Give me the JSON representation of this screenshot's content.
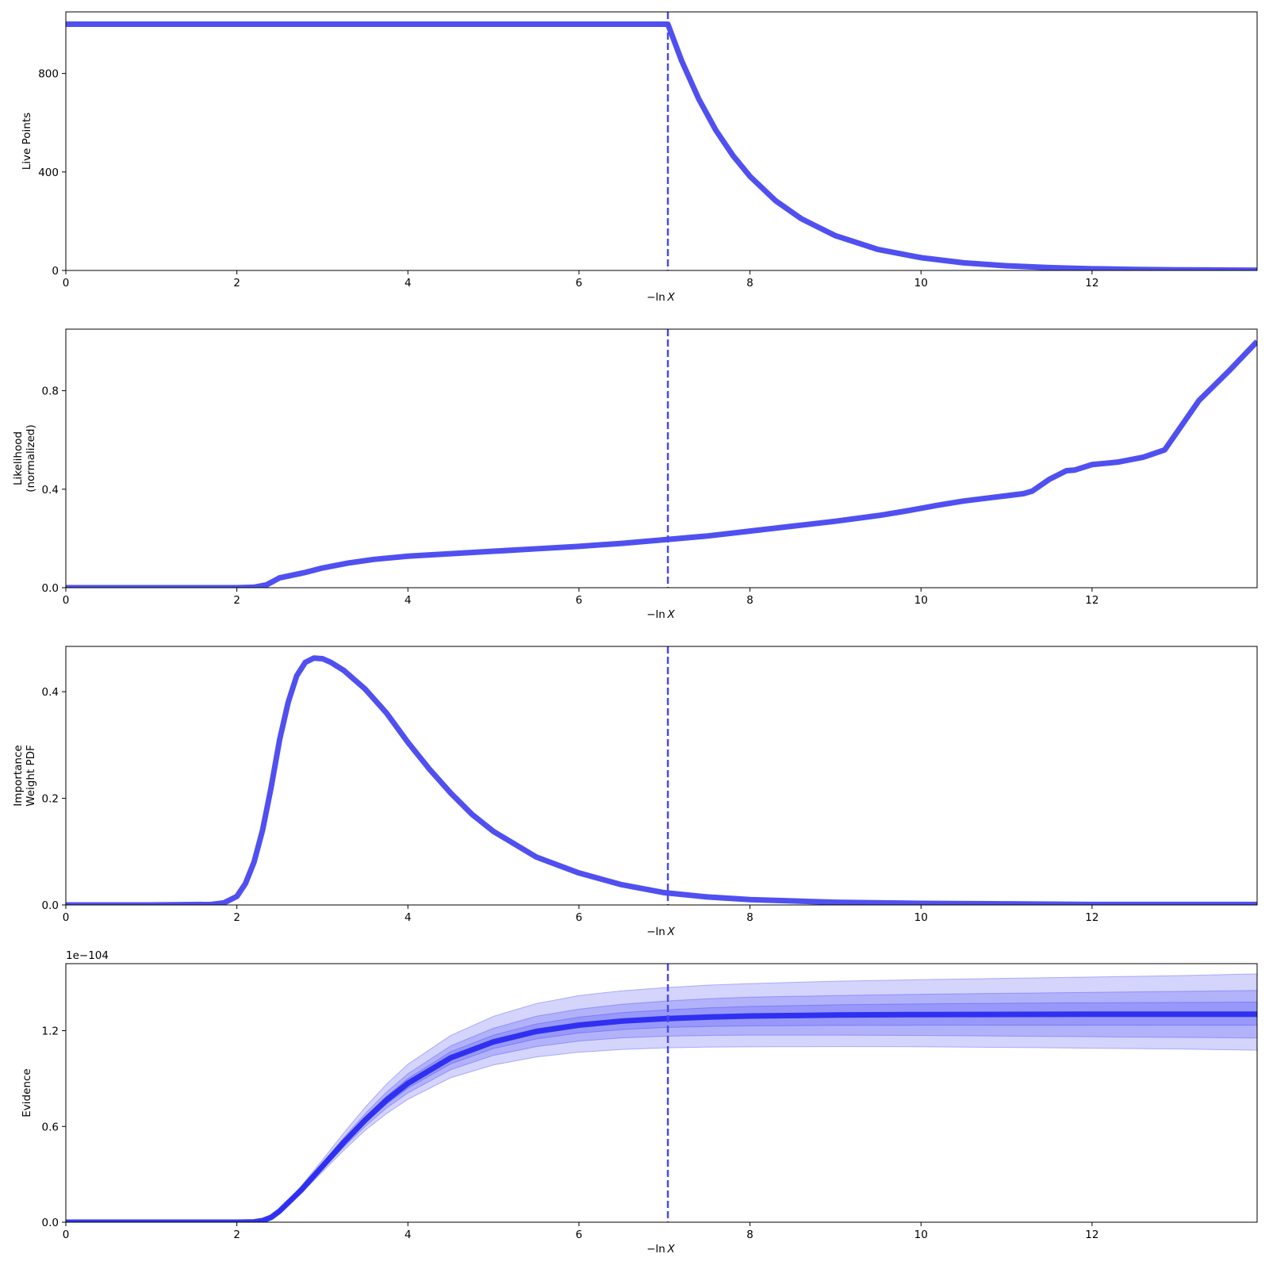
{
  "figure": {
    "background": "#ffffff",
    "line_color": "#5050f0",
    "band_color": "#3a3af5",
    "evidence_line_color": "#2a2af0",
    "marker_line_color": "#4a4af0"
  },
  "chart_data": [
    {
      "type": "line",
      "name": "live-points",
      "ylabel": [
        "Live Points"
      ],
      "xlabel_text": "−ln",
      "xlabel_var": "X",
      "xlim": [
        0,
        13.93
      ],
      "ylim": [
        0,
        1050
      ],
      "xticks": [
        0,
        2,
        4,
        6,
        8,
        10,
        12
      ],
      "xtick_labels": [
        "0",
        "2",
        "4",
        "6",
        "8",
        "10",
        "12"
      ],
      "yticks": [
        0,
        400,
        800
      ],
      "ytick_labels": [
        "0",
        "400",
        "800"
      ],
      "marker_x": 7.04,
      "offset_text": "",
      "x": [
        0,
        1,
        2,
        3,
        4,
        5,
        6,
        7.04,
        7.2,
        7.4,
        7.6,
        7.8,
        8.0,
        8.3,
        8.6,
        9.0,
        9.5,
        10.0,
        10.5,
        11.0,
        11.5,
        12.0,
        12.5,
        13.0,
        13.5,
        13.93
      ],
      "y": [
        1000,
        1000,
        1000,
        1000,
        1000,
        1000,
        1000,
        1000,
        852,
        697,
        570,
        467,
        382,
        283,
        210,
        141,
        85,
        52,
        31,
        19,
        11.5,
        7,
        4.2,
        2.6,
        1.6,
        1
      ]
    },
    {
      "type": "line",
      "name": "likelihood",
      "ylabel": [
        "Likelihood",
        "(normalized)"
      ],
      "xlabel_text": "−ln",
      "xlabel_var": "X",
      "xlim": [
        0,
        13.93
      ],
      "ylim": [
        0,
        1.05
      ],
      "xticks": [
        0,
        2,
        4,
        6,
        8,
        10,
        12
      ],
      "xtick_labels": [
        "0",
        "2",
        "4",
        "6",
        "8",
        "10",
        "12"
      ],
      "yticks": [
        0,
        0.4,
        0.8
      ],
      "ytick_labels": [
        "0.0",
        "0.4",
        "0.8"
      ],
      "marker_x": 7.04,
      "offset_text": "",
      "x": [
        0,
        1,
        2,
        2.2,
        2.35,
        2.5,
        2.8,
        3.0,
        3.3,
        3.6,
        4.0,
        4.5,
        5.0,
        5.5,
        6.0,
        6.5,
        7.0,
        7.5,
        8.0,
        8.5,
        9.0,
        9.5,
        9.8,
        10.2,
        10.5,
        10.8,
        11.2,
        11.3,
        11.5,
        11.7,
        11.8,
        12.0,
        12.3,
        12.6,
        12.85,
        13.25,
        13.6,
        13.93
      ],
      "y": [
        0,
        0,
        0,
        0.002,
        0.012,
        0.04,
        0.062,
        0.08,
        0.1,
        0.115,
        0.128,
        0.138,
        0.148,
        0.158,
        0.168,
        0.18,
        0.195,
        0.21,
        0.23,
        0.25,
        0.27,
        0.293,
        0.31,
        0.335,
        0.352,
        0.365,
        0.382,
        0.392,
        0.44,
        0.475,
        0.478,
        0.5,
        0.51,
        0.53,
        0.56,
        0.76,
        0.88,
        1.0
      ]
    },
    {
      "type": "line",
      "name": "importance-weight",
      "ylabel": [
        "Importance",
        "Weight PDF"
      ],
      "xlabel_text": "−ln",
      "xlabel_var": "X",
      "xlim": [
        0,
        13.93
      ],
      "ylim": [
        0,
        0.485
      ],
      "xticks": [
        0,
        2,
        4,
        6,
        8,
        10,
        12
      ],
      "xtick_labels": [
        "0",
        "2",
        "4",
        "6",
        "8",
        "10",
        "12"
      ],
      "yticks": [
        0,
        0.2,
        0.4
      ],
      "ytick_labels": [
        "0.0",
        "0.2",
        "0.4"
      ],
      "marker_x": 7.04,
      "offset_text": "",
      "x": [
        0,
        1,
        1.7,
        1.85,
        2.0,
        2.1,
        2.2,
        2.3,
        2.4,
        2.5,
        2.6,
        2.7,
        2.8,
        2.9,
        3.0,
        3.1,
        3.25,
        3.5,
        3.75,
        4.0,
        4.25,
        4.5,
        4.75,
        5.0,
        5.5,
        6.0,
        6.5,
        7.0,
        7.5,
        8.0,
        9.0,
        10.0,
        11.0,
        12.0,
        13.0,
        13.93
      ],
      "y": [
        0,
        0,
        0.001,
        0.004,
        0.016,
        0.04,
        0.08,
        0.14,
        0.22,
        0.31,
        0.38,
        0.43,
        0.455,
        0.463,
        0.462,
        0.455,
        0.44,
        0.405,
        0.36,
        0.305,
        0.255,
        0.21,
        0.17,
        0.138,
        0.09,
        0.06,
        0.038,
        0.023,
        0.015,
        0.01,
        0.005,
        0.003,
        0.002,
        0.001,
        0.001,
        0.001
      ]
    },
    {
      "type": "area",
      "name": "evidence",
      "ylabel": [
        "Evidence"
      ],
      "xlabel_text": "−ln",
      "xlabel_var": "X",
      "xlim": [
        0,
        13.93
      ],
      "ylim": [
        0,
        1.62
      ],
      "xticks": [
        0,
        2,
        4,
        6,
        8,
        10,
        12
      ],
      "xtick_labels": [
        "0",
        "2",
        "4",
        "6",
        "8",
        "10",
        "12"
      ],
      "yticks": [
        0,
        0.6,
        1.2
      ],
      "ytick_labels": [
        "0.0",
        "0.6",
        "1.2"
      ],
      "marker_x": 7.04,
      "offset_text": "1e−104",
      "x": [
        0,
        1,
        2,
        2.2,
        2.3,
        2.4,
        2.5,
        2.75,
        3.0,
        3.25,
        3.5,
        3.75,
        4.0,
        4.5,
        5.0,
        5.5,
        6.0,
        6.5,
        7.0,
        7.5,
        8.0,
        9.0,
        10.0,
        11.0,
        12.0,
        13.0,
        13.93
      ],
      "y": [
        0,
        0,
        0,
        0.002,
        0.01,
        0.03,
        0.07,
        0.2,
        0.35,
        0.5,
        0.64,
        0.765,
        0.87,
        1.03,
        1.13,
        1.195,
        1.235,
        1.26,
        1.275,
        1.285,
        1.292,
        1.298,
        1.301,
        1.302,
        1.303,
        1.303,
        1.303
      ],
      "bands": [
        {
          "level": "1-sigma",
          "opacity": 0.22,
          "lower": [
            0,
            0,
            0,
            0.002,
            0.01,
            0.028,
            0.065,
            0.19,
            0.33,
            0.47,
            0.6,
            0.715,
            0.81,
            0.955,
            1.045,
            1.1,
            1.135,
            1.155,
            1.165,
            1.17,
            1.172,
            1.172,
            1.17,
            1.166,
            1.162,
            1.158,
            1.154
          ],
          "upper": [
            0,
            0,
            0,
            0.002,
            0.01,
            0.032,
            0.075,
            0.21,
            0.37,
            0.53,
            0.68,
            0.815,
            0.93,
            1.105,
            1.215,
            1.29,
            1.335,
            1.365,
            1.385,
            1.4,
            1.41,
            1.42,
            1.428,
            1.434,
            1.44,
            1.446,
            1.452
          ]
        },
        {
          "level": "2-sigma",
          "opacity": 0.22,
          "lower": [
            0,
            0,
            0,
            0.002,
            0.01,
            0.029,
            0.067,
            0.195,
            0.34,
            0.485,
            0.62,
            0.74,
            0.84,
            0.992,
            1.088,
            1.148,
            1.185,
            1.207,
            1.22,
            1.226,
            1.23,
            1.233,
            1.234,
            1.234,
            1.234,
            1.234,
            1.234
          ],
          "upper": [
            0,
            0,
            0,
            0.002,
            0.01,
            0.031,
            0.073,
            0.205,
            0.36,
            0.515,
            0.66,
            0.79,
            0.9,
            1.068,
            1.172,
            1.242,
            1.285,
            1.313,
            1.33,
            1.343,
            1.352,
            1.362,
            1.368,
            1.372,
            1.375,
            1.377,
            1.379
          ]
        },
        {
          "level": "3-sigma",
          "opacity": 0.22,
          "lower": [
            0,
            0,
            0,
            0.002,
            0.01,
            0.026,
            0.06,
            0.18,
            0.315,
            0.45,
            0.575,
            0.68,
            0.77,
            0.905,
            0.985,
            1.035,
            1.065,
            1.082,
            1.092,
            1.097,
            1.099,
            1.1,
            1.099,
            1.095,
            1.09,
            1.085,
            1.078
          ],
          "upper": [
            0,
            0,
            0,
            0.002,
            0.01,
            0.034,
            0.08,
            0.225,
            0.39,
            0.56,
            0.72,
            0.865,
            0.99,
            1.17,
            1.29,
            1.37,
            1.42,
            1.45,
            1.47,
            1.485,
            1.495,
            1.51,
            1.52,
            1.528,
            1.536,
            1.545,
            1.556
          ]
        }
      ]
    }
  ]
}
